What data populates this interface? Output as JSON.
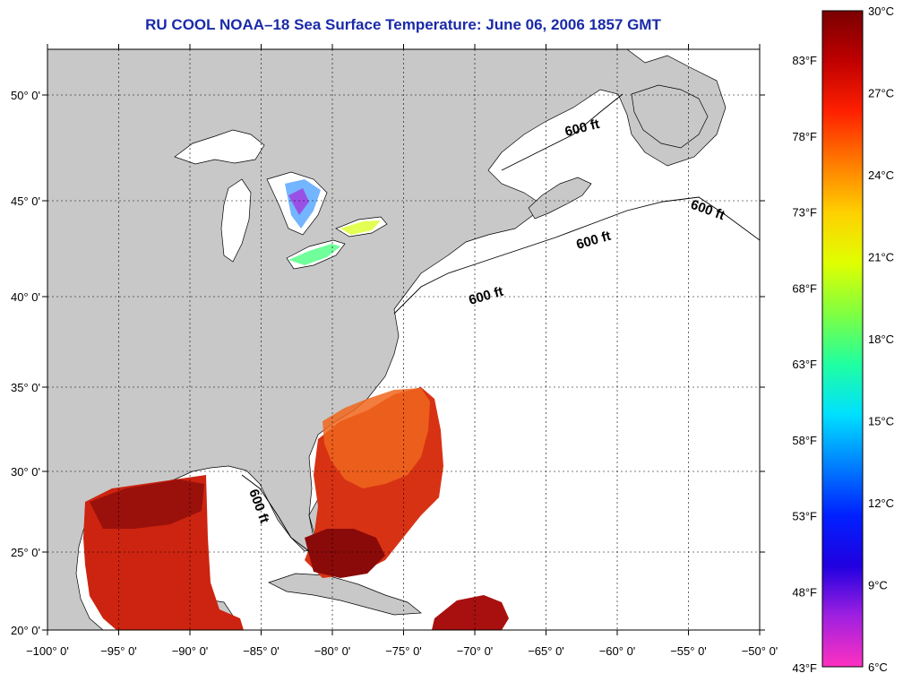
{
  "title": "RU COOL  NOAA–18  Sea Surface Temperature:  June 06, 2006 1857 GMT",
  "map": {
    "lon_ticks": [
      "−100° 0'",
      "−95° 0'",
      "−90° 0'",
      "−85° 0'",
      "−80° 0'",
      "−75° 0'",
      "−70° 0'",
      "−65° 0'",
      "−60° 0'",
      "−55° 0'",
      "−50° 0'"
    ],
    "lat_ticks": [
      "50° 0'",
      "45° 0'",
      "40° 0'",
      "35° 0'",
      "30° 0'",
      "25° 0'",
      "20° 0'"
    ],
    "isobath_labels": [
      "600 ft",
      "600 ft",
      "600 ft",
      "600 ft",
      "600 ft"
    ],
    "colors": {
      "land": "#c8c8c8",
      "ocean": "#ffffff",
      "warm_water": "#d42a10",
      "hot_water": "#8a0a0a",
      "gulfstream_orange": "#f0661c"
    }
  },
  "colorbar": {
    "celsius_labels": [
      "30°C",
      "27°C",
      "24°C",
      "21°C",
      "18°C",
      "15°C",
      "12°C",
      "9°C",
      "6°C"
    ],
    "fahrenheit_labels": [
      "83°F",
      "78°F",
      "73°F",
      "68°F",
      "63°F",
      "58°F",
      "53°F",
      "48°F",
      "43°F"
    ],
    "gradient": [
      "#7a0000",
      "#c00000",
      "#ff2000",
      "#ff7a00",
      "#ffd000",
      "#e0ff00",
      "#80ff40",
      "#20ffa0",
      "#00e0ff",
      "#0080ff",
      "#0020ff",
      "#2000e0",
      "#a020e0",
      "#ff30c0"
    ]
  }
}
